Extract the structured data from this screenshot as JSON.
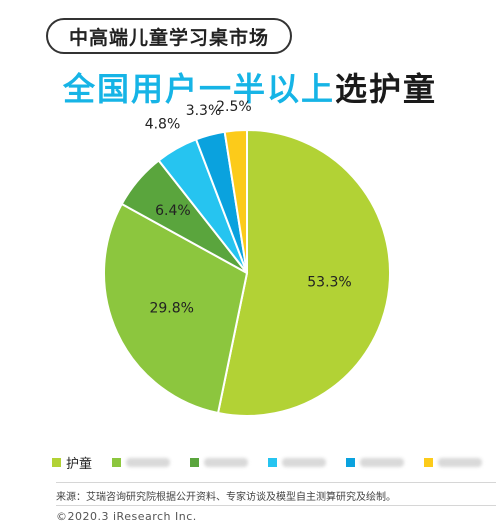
{
  "tag": "中高端儿童学习桌市场",
  "headline": {
    "accent": "全国用户一半以上",
    "strong": "选护童"
  },
  "chart_data": {
    "type": "pie",
    "slices": [
      {
        "label": "护童",
        "value": 53.3,
        "value_label": "53.3%",
        "color": "#b2d235"
      },
      {
        "label": "",
        "value": 29.8,
        "value_label": "29.8%",
        "color": "#8cc63e"
      },
      {
        "label": "",
        "value": 6.4,
        "value_label": "6.4%",
        "color": "#5aa53d"
      },
      {
        "label": "",
        "value": 4.8,
        "value_label": "4.8%",
        "color": "#26c4f0"
      },
      {
        "label": "",
        "value": 3.3,
        "value_label": "3.3%",
        "color": "#0aa2de"
      },
      {
        "label": "",
        "value": 2.5,
        "value_label": "2.5%",
        "color": "#fccb1a"
      }
    ],
    "legend_position": "bottom"
  },
  "footer": {
    "source": "来源：艾瑞咨询研究院根据公开资料、专家访谈及模型自主测算研究及绘制。",
    "copyright": "©2020.3 iResearch Inc."
  }
}
